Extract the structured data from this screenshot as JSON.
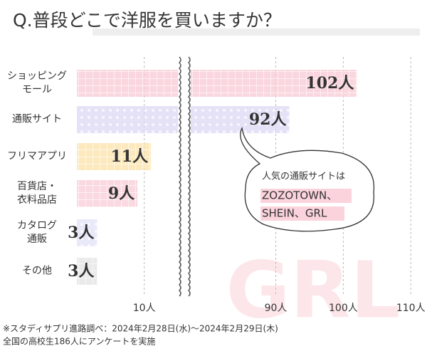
{
  "chart_data": {
    "type": "broken_hbar",
    "title": "Q.普段どこで洋服を買いますか？",
    "categories": [
      "ショッピング\nモール",
      "通販サイト",
      "フリマアプリ",
      "百貨店・\n衣料品店",
      "カタログ\n通販",
      "その他"
    ],
    "values": [
      102,
      92,
      11,
      9,
      3,
      3
    ],
    "value_labels": [
      "102人",
      "92人",
      "11人",
      "9人",
      "3人",
      "3人"
    ],
    "colors": [
      "#f8c8d3",
      "#dcd8f4",
      "#fbe1a8",
      "#f8ccd6",
      "#e3e1f7",
      "#e2e2e2"
    ],
    "xlim_segments": [
      [
        0,
        15
      ],
      [
        77.4,
        112.4
      ]
    ],
    "xticks": [
      {
        "value": 10,
        "label": "10人"
      },
      {
        "value": 90,
        "label": "90人"
      },
      {
        "value": 100,
        "label": "100人"
      },
      {
        "value": 110,
        "label": "110人"
      }
    ],
    "grid": true,
    "annotation": [
      "人気の通販サイトは",
      "ZOZOTOWN、",
      "SHEIN、GRL"
    ],
    "watermark": "GRL",
    "footnotes": [
      "※スタディサプリ進路調べ：2024年2月28日(水)〜2024年2月29日(木)",
      "全国の高校生186人にアンケートを実施"
    ]
  }
}
